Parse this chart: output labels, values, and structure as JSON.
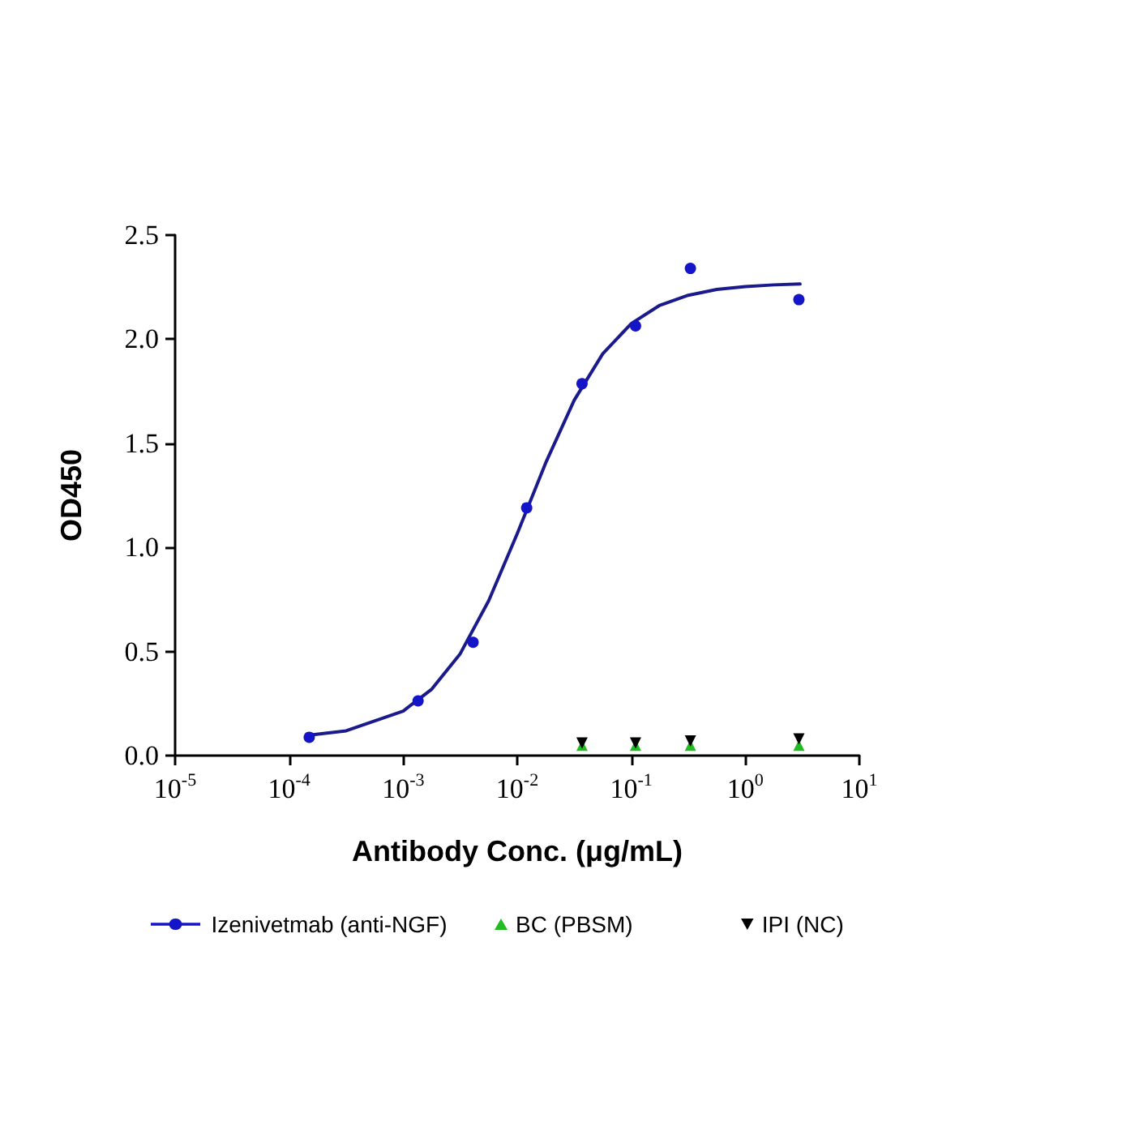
{
  "chart_data": {
    "type": "scatter",
    "xlabel": "Antibody Conc. (μg/mL)",
    "ylabel": "OD450",
    "log": "x",
    "grid": false,
    "legend": "bottom",
    "xlim": [
      1e-05,
      10
    ],
    "xticks": [
      {
        "value": 1e-05,
        "label": "10$^{-5}$"
      },
      {
        "value": 0.0001,
        "label": "10$^{-4}$"
      },
      {
        "value": 0.001,
        "label": "10$^{-3}$"
      },
      {
        "value": 0.01,
        "label": "10$^{-2}$"
      },
      {
        "value": 0.1,
        "label": "10$^{-1}$"
      },
      {
        "value": 1,
        "label": "10$^{0}$"
      },
      {
        "value": 10,
        "label": "10$^{1}$"
      }
    ],
    "ylim": [
      0,
      2.5
    ],
    "yticks": [
      {
        "value": 0,
        "label": "0.0"
      },
      {
        "value": 0.5,
        "label": "0.5"
      },
      {
        "value": 1,
        "label": "1.0"
      },
      {
        "value": 1.5,
        "label": "1.5"
      },
      {
        "value": 2,
        "label": "2.0"
      },
      {
        "value": 2.5,
        "label": "2.5"
      }
    ],
    "series": [
      {
        "name": "Izenivetmab (anti-NGF)",
        "marker": "circle",
        "color": "#1414c8",
        "x": [
          0.00015,
          0.00135,
          0.0041,
          0.0121,
          0.037,
          0.109,
          0.33,
          2.95
        ],
        "values": [
          0.088,
          0.263,
          0.544,
          1.19,
          1.786,
          2.064,
          2.34,
          2.19
        ]
      },
      {
        "name": "BC (PBSM)",
        "marker": "triangle",
        "color": "#22bb22",
        "x": [
          0.037,
          0.109,
          0.33,
          2.95
        ],
        "values": [
          0.05,
          0.05,
          0.05,
          0.05
        ]
      },
      {
        "name": "IPI (NC)",
        "marker": "triangle-down",
        "color": "#000000",
        "x": [
          0.037,
          0.109,
          0.33,
          2.95
        ],
        "values": [
          0.06,
          0.06,
          0.07,
          0.08
        ]
      },
      {
        "type": "line",
        "marker": "none",
        "line_style": "solid",
        "color": "#1a1a8c",
        "x": [
          0.000151,
          0.000316,
          0.001,
          0.00178,
          0.00316,
          0.00562,
          0.01,
          0.0178,
          0.0316,
          0.0562,
          0.1,
          0.178,
          0.316,
          0.562,
          1,
          1.78,
          3.02
        ],
        "values": [
          0.098,
          0.119,
          0.214,
          0.319,
          0.489,
          0.744,
          1.066,
          1.407,
          1.707,
          1.93,
          2.075,
          2.163,
          2.211,
          2.239,
          2.253,
          2.261,
          2.265
        ]
      }
    ]
  }
}
